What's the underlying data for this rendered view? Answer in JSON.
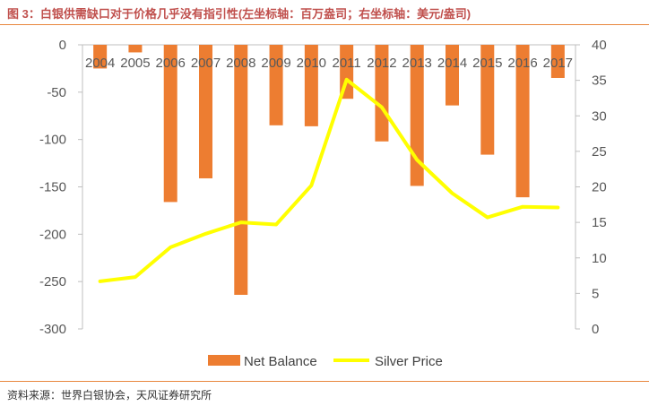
{
  "figure": {
    "title": "图 3：白银供需缺口对于价格几乎没有指引性(左坐标轴：百万盎司；右坐标轴：美元/盎司)",
    "source": "资料来源：世界白银协会，天风证券研究所"
  },
  "chart_data": {
    "type": "bar+line",
    "categories": [
      "2004",
      "2005",
      "2006",
      "2007",
      "2008",
      "2009",
      "2010",
      "2011",
      "2012",
      "2013",
      "2014",
      "2015",
      "2016",
      "2017"
    ],
    "series": [
      {
        "name": "Net Balance",
        "type": "bar",
        "axis": "left",
        "color": "#ed7d31",
        "values": [
          -25,
          -8,
          -166,
          -141,
          -264,
          -85,
          -86,
          -57,
          -102,
          -149,
          -64,
          -116,
          -161,
          -35
        ]
      },
      {
        "name": "Silver Price",
        "type": "line",
        "axis": "right",
        "color": "#ffff00",
        "values": [
          6.7,
          7.3,
          11.5,
          13.4,
          15.0,
          14.7,
          20.2,
          35.1,
          31.2,
          23.8,
          19.1,
          15.7,
          17.2,
          17.1
        ]
      }
    ],
    "y_left": {
      "min": -300,
      "max": 0,
      "ticks": [
        0,
        -50,
        -100,
        -150,
        -200,
        -250,
        -300
      ]
    },
    "y_right": {
      "min": 0,
      "max": 40,
      "ticks": [
        40,
        35,
        30,
        25,
        20,
        15,
        10,
        5,
        0
      ]
    },
    "grid": false,
    "legend_position": "bottom"
  }
}
